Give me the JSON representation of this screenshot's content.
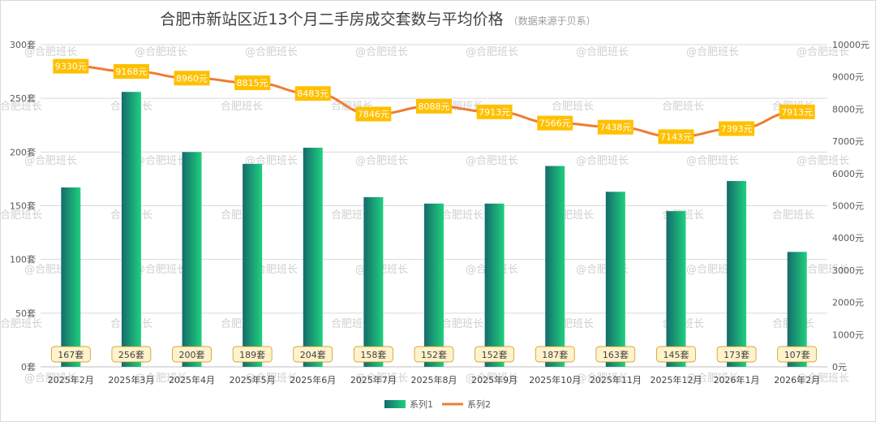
{
  "chart_data": {
    "type": "bar",
    "title": "合肥市新站区近13个月二手房成交套数与平均价格",
    "subtitle": "（数据来源于贝系）",
    "watermark": "@合肥班长",
    "watermark_alt": "合肥班长",
    "categories": [
      "2025年2月",
      "2025年3月",
      "2025年4月",
      "2025年5月",
      "2025年6月",
      "2025年7月",
      "2025年8月",
      "2025年9月",
      "2025年10月",
      "2025年11月",
      "2025年12月",
      "2026年1月",
      "2026年2月"
    ],
    "series": [
      {
        "name": "系列1",
        "type": "bar",
        "axis": "left",
        "unit": "套",
        "values": [
          167,
          256,
          200,
          189,
          204,
          158,
          152,
          152,
          187,
          163,
          145,
          173,
          107
        ],
        "color_dark": "#156b6b",
        "color_light": "#1fd07f"
      },
      {
        "name": "系列2",
        "type": "line",
        "axis": "right",
        "unit": "元",
        "values": [
          9330,
          9168,
          8960,
          8815,
          8483,
          7846,
          8088,
          7913,
          7566,
          7438,
          7143,
          7393,
          7913
        ],
        "color": "#ed7d31",
        "label_bg": "#ffc000"
      }
    ],
    "y_left": {
      "min": 0,
      "max": 300,
      "step": 50,
      "tick_suffix": "套"
    },
    "y_right": {
      "min": 0,
      "max": 10000,
      "step": 1000,
      "tick_suffix": "元"
    },
    "grid": true,
    "legend": "bottom-center",
    "bar_label_bg": "#fff2cc",
    "bar_label_border": "#bf9000"
  }
}
